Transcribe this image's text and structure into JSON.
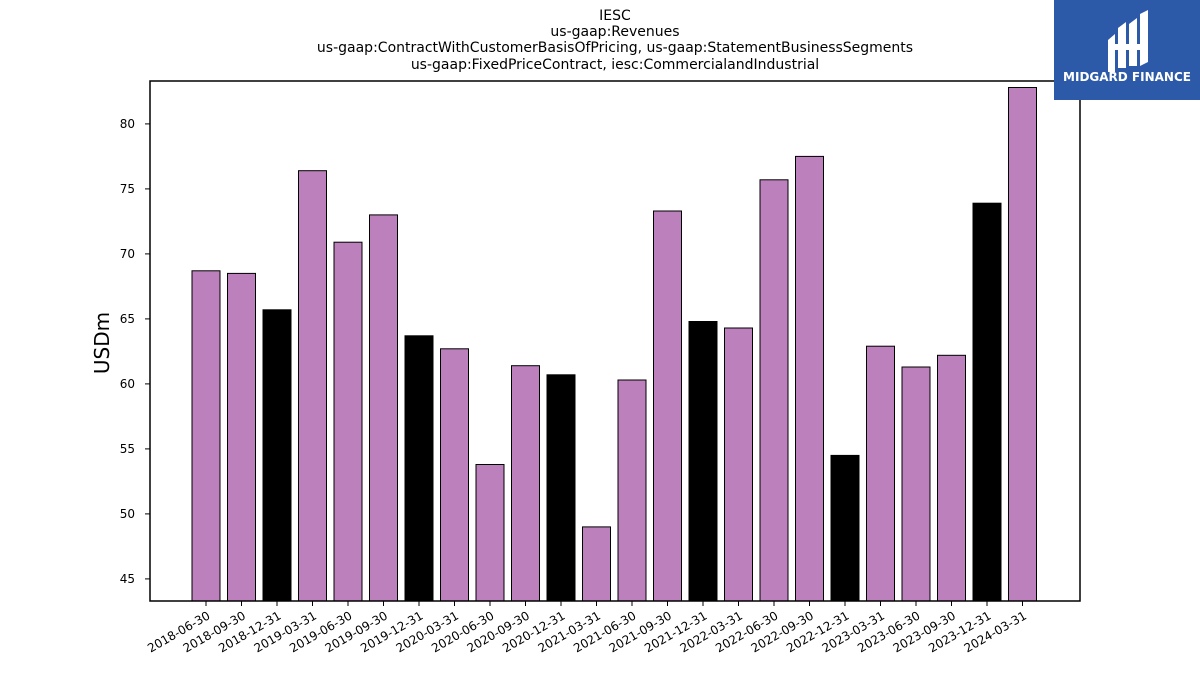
{
  "chart_data": {
    "type": "bar",
    "title_lines": [
      "IESC",
      "us-gaap:Revenues",
      "us-gaap:ContractWithCustomerBasisOfPricing, us-gaap:StatementBusinessSegments",
      "us-gaap:FixedPriceContract, iesc:CommercialandIndustrial"
    ],
    "xlabel": "",
    "ylabel": "USDm",
    "ylim": [
      43.3,
      83.3
    ],
    "yticks": [
      45,
      50,
      55,
      60,
      65,
      70,
      75,
      80
    ],
    "grid": false,
    "categories": [
      "2018-06-30",
      "2018-09-30",
      "2018-12-31",
      "2019-03-31",
      "2019-06-30",
      "2019-09-30",
      "2019-12-31",
      "2020-03-31",
      "2020-06-30",
      "2020-09-30",
      "2020-12-31",
      "2021-03-31",
      "2021-06-30",
      "2021-09-30",
      "2021-12-31",
      "2022-03-31",
      "2022-06-30",
      "2022-09-30",
      "2022-12-31",
      "2023-03-31",
      "2023-06-30",
      "2023-09-30",
      "2023-12-31",
      "2024-03-31"
    ],
    "values": [
      68.7,
      68.5,
      65.7,
      76.4,
      70.9,
      73.0,
      63.7,
      62.7,
      53.8,
      61.4,
      60.7,
      49.0,
      60.3,
      73.3,
      64.8,
      64.3,
      75.7,
      77.5,
      54.5,
      62.9,
      61.3,
      62.2,
      73.9,
      82.8
    ],
    "colors": [
      "#bc80bd",
      "#bc80bd",
      "#000000",
      "#bc80bd",
      "#bc80bd",
      "#bc80bd",
      "#000000",
      "#bc80bd",
      "#bc80bd",
      "#bc80bd",
      "#000000",
      "#bc80bd",
      "#bc80bd",
      "#bc80bd",
      "#000000",
      "#bc80bd",
      "#bc80bd",
      "#bc80bd",
      "#000000",
      "#bc80bd",
      "#bc80bd",
      "#bc80bd",
      "#000000",
      "#bc80bd"
    ]
  },
  "logo": {
    "text": "MIDGARD FINANCE",
    "background_color": "#2d5aa8"
  }
}
